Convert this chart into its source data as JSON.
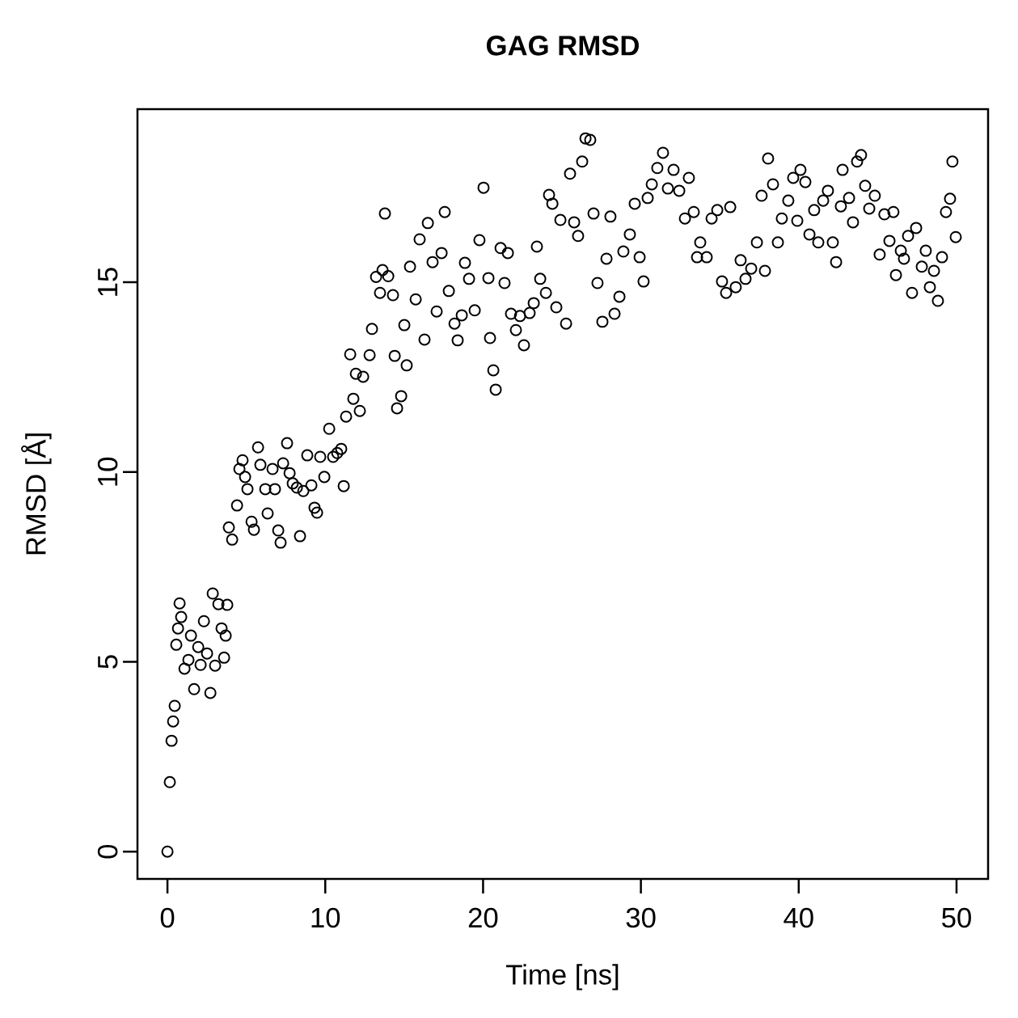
{
  "chart_data": {
    "type": "scatter",
    "title": "GAG RMSD",
    "xlabel": "Time [ns]",
    "ylabel": "RMSD [Å]",
    "xlim": [
      -1.9,
      52
    ],
    "ylim": [
      -0.72,
      19.56
    ],
    "xticks": [
      0,
      10,
      20,
      30,
      40,
      50
    ],
    "yticks": [
      0,
      5,
      10,
      15
    ],
    "marker": "circle",
    "grid": false,
    "series": [
      {
        "color": "#000000",
        "x": [
          0,
          0.15,
          0.26,
          0.36,
          0.46,
          0.56,
          0.67,
          0.77,
          0.87,
          1.08,
          1.33,
          1.49,
          1.69,
          1.95,
          2.1,
          2.31,
          2.51,
          2.72,
          2.87,
          3.02,
          3.23,
          3.43,
          3.59,
          3.69,
          3.79,
          3.89,
          4.1,
          4.41,
          4.56,
          4.76,
          4.92,
          5.07,
          5.33,
          5.48,
          5.74,
          5.89,
          6.2,
          6.35,
          6.66,
          6.81,
          7.02,
          7.17,
          7.33,
          7.58,
          7.74,
          7.94,
          8.2,
          8.4,
          8.61,
          8.86,
          9.12,
          9.32,
          9.48,
          9.68,
          9.94,
          10.25,
          10.5,
          10.76,
          11.01,
          11.17,
          11.32,
          11.58,
          11.78,
          11.94,
          12.19,
          12.4,
          12.81,
          12.96,
          13.22,
          13.47,
          13.63,
          13.78,
          13.99,
          14.29,
          14.4,
          14.55,
          14.81,
          15.01,
          15.16,
          15.37,
          15.73,
          15.98,
          16.29,
          16.5,
          16.8,
          17.06,
          17.37,
          17.57,
          17.83,
          18.19,
          18.39,
          18.65,
          18.85,
          19.11,
          19.47,
          19.77,
          20.03,
          20.34,
          20.44,
          20.65,
          20.8,
          21.11,
          21.36,
          21.57,
          21.77,
          22.08,
          22.34,
          22.59,
          22.95,
          23.21,
          23.41,
          23.62,
          23.98,
          24.18,
          24.39,
          24.64,
          24.9,
          25.26,
          25.51,
          25.77,
          26.02,
          26.28,
          26.49,
          26.79,
          27.0,
          27.25,
          27.56,
          27.82,
          28.07,
          28.33,
          28.64,
          28.89,
          29.3,
          29.61,
          29.92,
          30.17,
          30.43,
          30.69,
          31.04,
          31.4,
          31.71,
          32.07,
          32.43,
          32.79,
          33.04,
          33.35,
          33.56,
          33.76,
          34.17,
          34.48,
          34.84,
          35.14,
          35.4,
          35.66,
          36.01,
          36.32,
          36.63,
          36.99,
          37.35,
          37.65,
          37.86,
          38.06,
          38.37,
          38.68,
          38.93,
          39.34,
          39.65,
          39.91,
          40.11,
          40.42,
          40.68,
          40.98,
          41.24,
          41.55,
          41.85,
          42.16,
          42.37,
          42.67,
          42.78,
          43.19,
          43.44,
          43.7,
          43.95,
          44.21,
          44.47,
          44.82,
          45.13,
          45.43,
          45.75,
          46.0,
          46.16,
          46.47,
          46.67,
          46.93,
          47.18,
          47.44,
          47.8,
          48.05,
          48.31,
          48.57,
          48.82,
          49.08,
          49.33,
          49.59,
          49.74,
          49.95
        ],
        "values": [
          0,
          1.83,
          2.92,
          3.43,
          3.84,
          5.45,
          5.88,
          6.54,
          6.18,
          4.82,
          5.05,
          5.69,
          4.28,
          5.39,
          4.92,
          6.07,
          5.22,
          4.18,
          6.8,
          4.9,
          6.52,
          5.88,
          5.11,
          5.69,
          6.5,
          8.54,
          8.22,
          9.12,
          10.08,
          10.31,
          9.87,
          9.55,
          8.69,
          8.48,
          10.65,
          10.19,
          9.55,
          8.91,
          10.08,
          9.55,
          8.46,
          8.14,
          10.23,
          10.76,
          9.97,
          9.7,
          9.59,
          8.31,
          9.5,
          10.44,
          9.65,
          9.06,
          8.93,
          10.4,
          9.87,
          11.14,
          10.4,
          10.5,
          10.61,
          9.63,
          11.46,
          13.1,
          11.93,
          12.59,
          11.61,
          12.51,
          13.08,
          13.77,
          15.14,
          14.72,
          15.32,
          16.81,
          15.16,
          14.66,
          13.06,
          11.68,
          12.0,
          13.87,
          12.81,
          15.41,
          14.55,
          16.13,
          13.49,
          16.56,
          15.53,
          14.23,
          15.77,
          16.85,
          14.77,
          13.91,
          13.47,
          14.13,
          15.51,
          15.09,
          14.26,
          16.11,
          17.49,
          15.11,
          13.53,
          12.68,
          12.17,
          15.9,
          14.98,
          15.77,
          14.17,
          13.74,
          14.11,
          13.34,
          14.19,
          14.45,
          15.94,
          15.09,
          14.72,
          17.3,
          17.07,
          14.34,
          16.64,
          13.91,
          17.86,
          16.58,
          16.22,
          18.18,
          18.79,
          18.75,
          16.81,
          14.98,
          13.96,
          15.62,
          16.73,
          14.17,
          14.62,
          15.81,
          16.26,
          17.07,
          15.66,
          15.02,
          17.22,
          17.58,
          18.01,
          18.41,
          17.47,
          17.96,
          17.41,
          16.68,
          17.75,
          16.85,
          15.66,
          16.05,
          15.66,
          16.68,
          16.9,
          15.02,
          14.72,
          16.98,
          14.87,
          15.58,
          15.09,
          15.36,
          16.05,
          17.28,
          15.3,
          18.26,
          17.58,
          16.05,
          16.68,
          17.15,
          17.75,
          16.62,
          17.96,
          17.64,
          16.26,
          16.9,
          16.05,
          17.15,
          17.41,
          16.05,
          15.53,
          17.0,
          17.96,
          17.22,
          16.58,
          18.18,
          18.35,
          17.54,
          16.94,
          17.28,
          15.73,
          16.79,
          16.09,
          16.85,
          15.19,
          15.83,
          15.62,
          16.22,
          14.72,
          16.43,
          15.41,
          15.83,
          14.87,
          15.3,
          14.51,
          15.66,
          16.85,
          17.2,
          18.18,
          16.19
        ]
      }
    ]
  }
}
